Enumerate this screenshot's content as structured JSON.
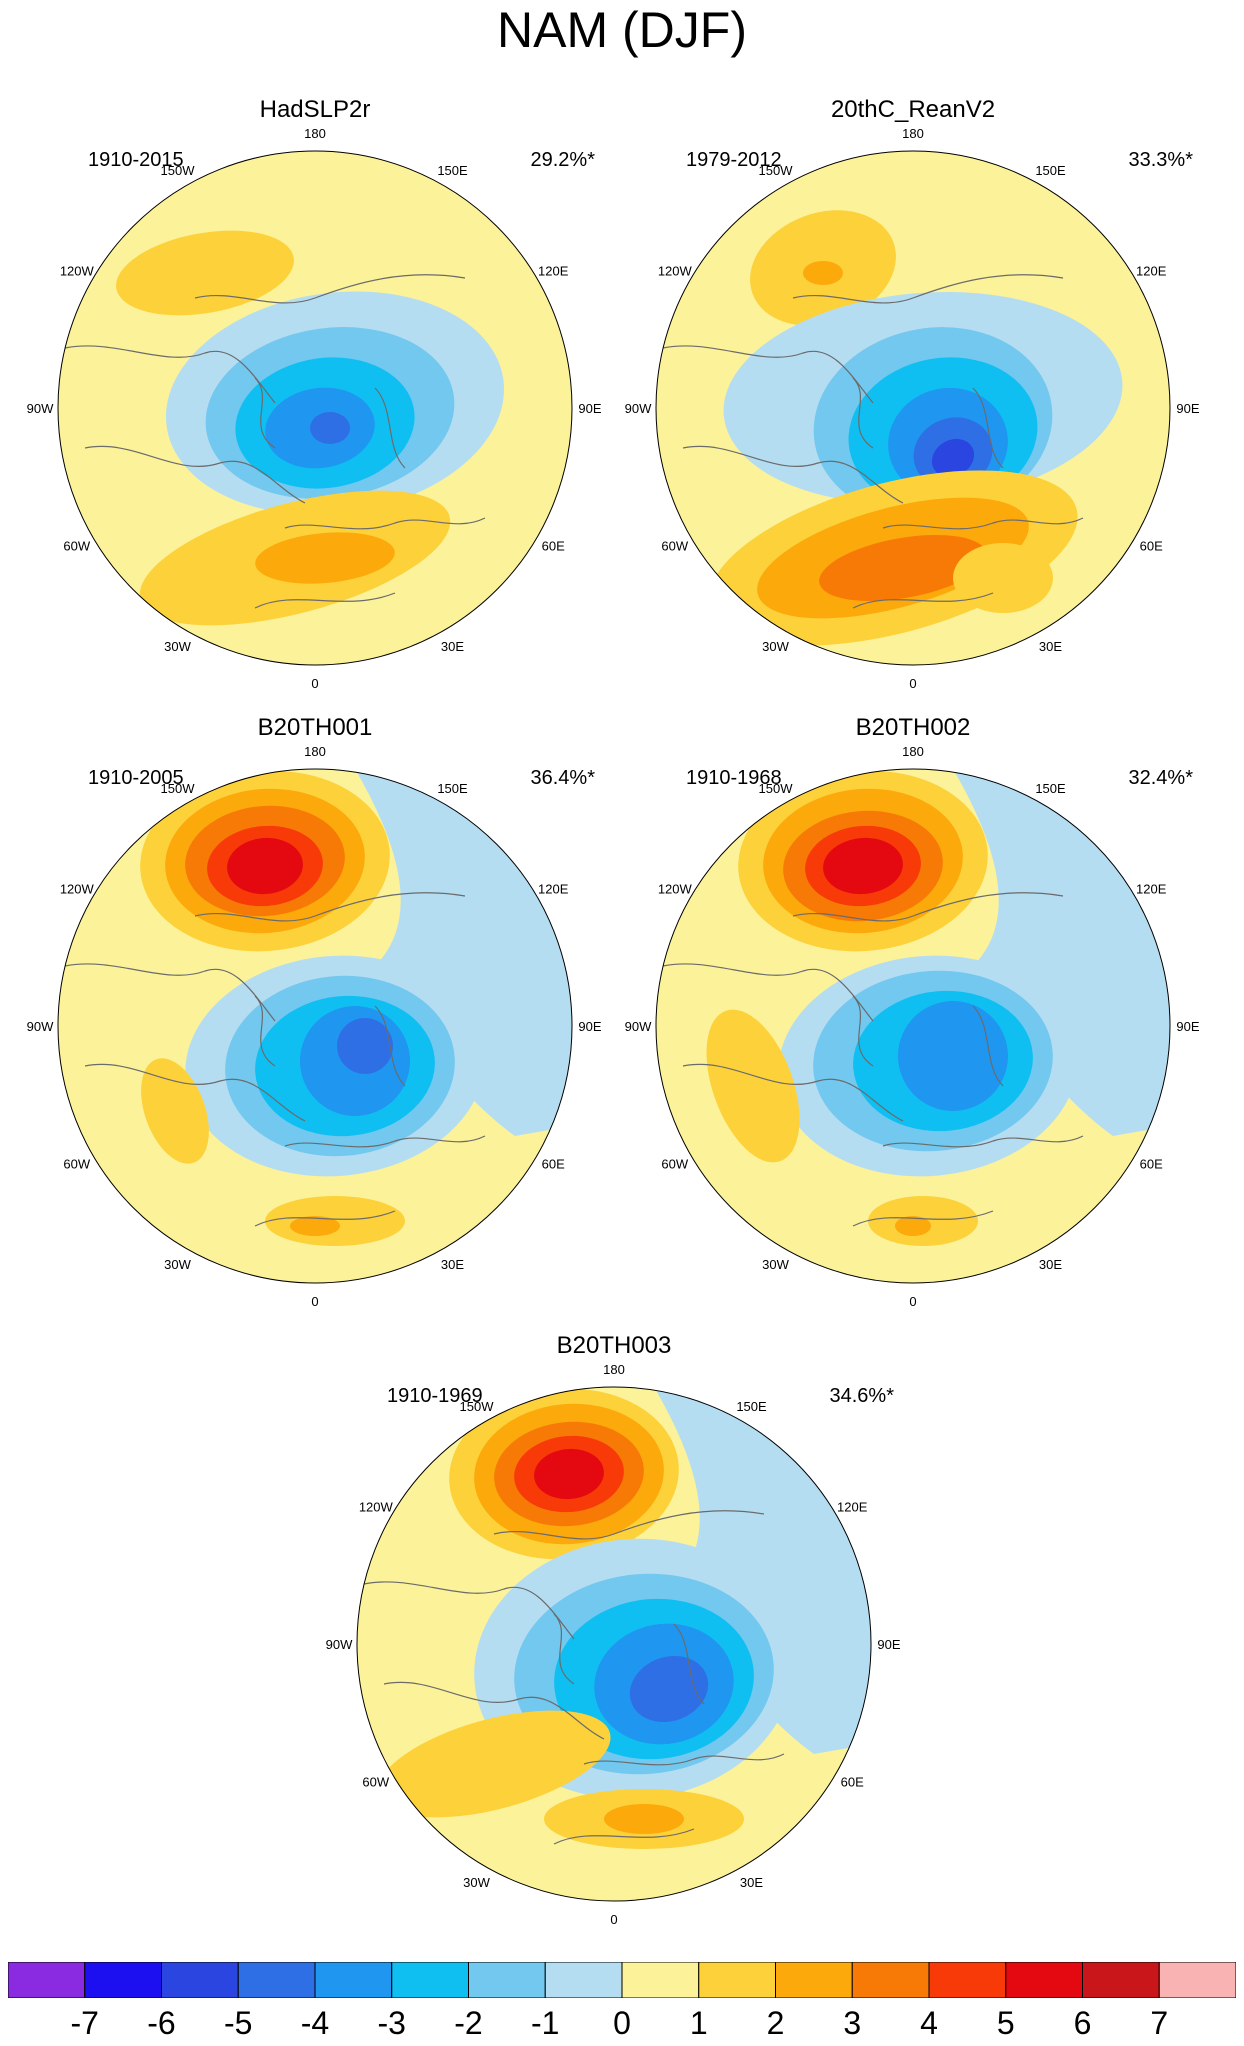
{
  "title": "NAM (DJF)",
  "panels": [
    {
      "name": "HadSLP2r",
      "period": "1910-2015",
      "variance": "29.2%*"
    },
    {
      "name": "20thC_ReanV2",
      "period": "1979-2012",
      "variance": "33.3%*"
    },
    {
      "name": "B20TH001",
      "period": "1910-2005",
      "variance": "36.4%*"
    },
    {
      "name": "B20TH002",
      "period": "1910-1968",
      "variance": "32.4%*"
    },
    {
      "name": "B20TH003",
      "period": "1910-1969",
      "variance": "34.6%*"
    }
  ],
  "longitude_labels": [
    "180",
    "150E",
    "120E",
    "90E",
    "60E",
    "30E",
    "0",
    "30W",
    "60W",
    "90W",
    "120W",
    "150W"
  ],
  "colorbar": {
    "labels": [
      "-7",
      "-6",
      "-5",
      "-4",
      "-3",
      "-2",
      "-1",
      "0",
      "1",
      "2",
      "3",
      "4",
      "5",
      "6",
      "7"
    ],
    "colors": [
      "#8a2be2",
      "#1c10f0",
      "#2a45e0",
      "#2f6fe6",
      "#1f96f0",
      "#0fbff2",
      "#72c8ee",
      "#b5ddf2",
      "#fbf29a",
      "#fdd13a",
      "#fca90b",
      "#f87a06",
      "#f73a08",
      "#e40910",
      "#c8161a",
      "#f9b3b3"
    ]
  }
}
